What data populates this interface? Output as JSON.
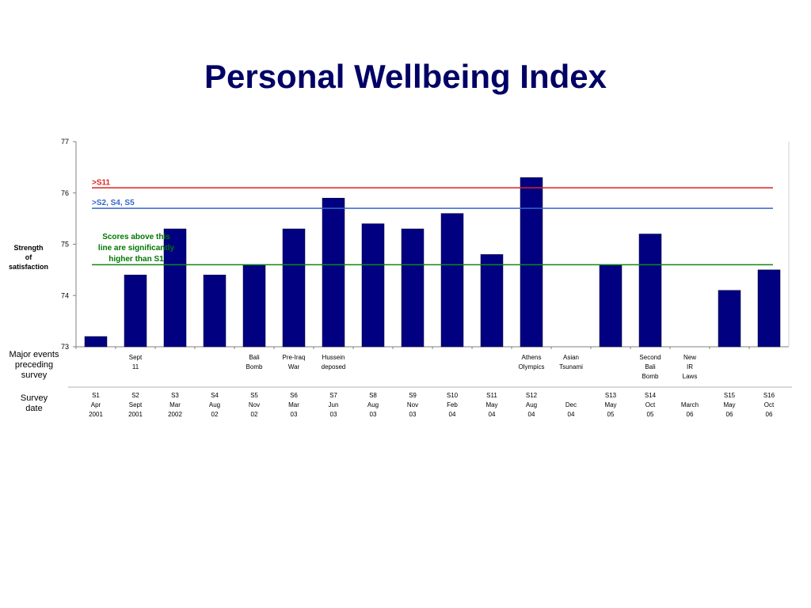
{
  "page": {
    "title": "Personal Wellbeing Index"
  },
  "labels": {
    "ylabel": [
      "Strength",
      "of",
      "satisfaction"
    ],
    "events": [
      "Major events",
      "preceding",
      "survey"
    ],
    "survey": [
      "Survey",
      "date"
    ]
  },
  "chart_data": {
    "type": "bar",
    "title": "Personal Wellbeing Index",
    "ylabel": "Strength of satisfaction",
    "ylim": [
      73,
      77
    ],
    "yticks": [
      73,
      74,
      75,
      76,
      77
    ],
    "grid": false,
    "bar_color": "#000080",
    "categories": [
      {
        "survey": [
          "S1",
          "Apr",
          "2001"
        ],
        "event": [],
        "value": 73.2
      },
      {
        "survey": [
          "S2",
          "Sept",
          "2001"
        ],
        "event": [
          "Sept",
          "11"
        ],
        "value": 74.4
      },
      {
        "survey": [
          "S3",
          "Mar",
          "2002"
        ],
        "event": [],
        "value": 75.3
      },
      {
        "survey": [
          "S4",
          "Aug",
          "02"
        ],
        "event": [],
        "value": 74.4
      },
      {
        "survey": [
          "S5",
          "Nov",
          "02"
        ],
        "event": [
          "Bali",
          "Bomb"
        ],
        "value": 74.6
      },
      {
        "survey": [
          "S6",
          "Mar",
          "03"
        ],
        "event": [
          "Pre-Iraq",
          "War"
        ],
        "value": 75.3
      },
      {
        "survey": [
          "S7",
          "Jun",
          "03"
        ],
        "event": [
          "Hussein",
          "deposed"
        ],
        "value": 75.9
      },
      {
        "survey": [
          "S8",
          "Aug",
          "03"
        ],
        "event": [],
        "value": 75.4
      },
      {
        "survey": [
          "S9",
          "Nov",
          "03"
        ],
        "event": [],
        "value": 75.3
      },
      {
        "survey": [
          "S10",
          "Feb",
          "04"
        ],
        "event": [],
        "value": 75.6
      },
      {
        "survey": [
          "S11",
          "May",
          "04"
        ],
        "event": [],
        "value": 74.8
      },
      {
        "survey": [
          "S12",
          "Aug",
          "04"
        ],
        "event": [
          "Athens",
          "Olympics"
        ],
        "value": 76.3
      },
      {
        "survey": [
          "",
          "Dec",
          "04"
        ],
        "event": [
          "Asian",
          "Tsunami"
        ],
        "value": null
      },
      {
        "survey": [
          "S13",
          "May",
          "05"
        ],
        "event": [],
        "value": 74.6
      },
      {
        "survey": [
          "S14",
          "Oct",
          "05"
        ],
        "event": [
          "Second",
          "Bali",
          "Bomb"
        ],
        "value": 75.2
      },
      {
        "survey": [
          "",
          "March",
          "06"
        ],
        "event": [
          "New",
          "IR",
          "Laws"
        ],
        "value": null
      },
      {
        "survey": [
          "S15",
          "May",
          "06"
        ],
        "event": [],
        "value": 74.1
      },
      {
        "survey": [
          "S16",
          "Oct",
          "06"
        ],
        "event": [],
        "value": 74.5
      }
    ],
    "reference_lines": [
      {
        "label": ">S11",
        "value": 76.1,
        "color": "#dd2222"
      },
      {
        "label": ">S2, S4, S5",
        "value": 75.7,
        "color": "#3366cc"
      },
      {
        "label": "",
        "value": 74.6,
        "color": "#118811"
      }
    ],
    "annotation": [
      "Scores above this",
      "line are significantly",
      "higher than S1"
    ],
    "annotation_color": "#007700"
  }
}
